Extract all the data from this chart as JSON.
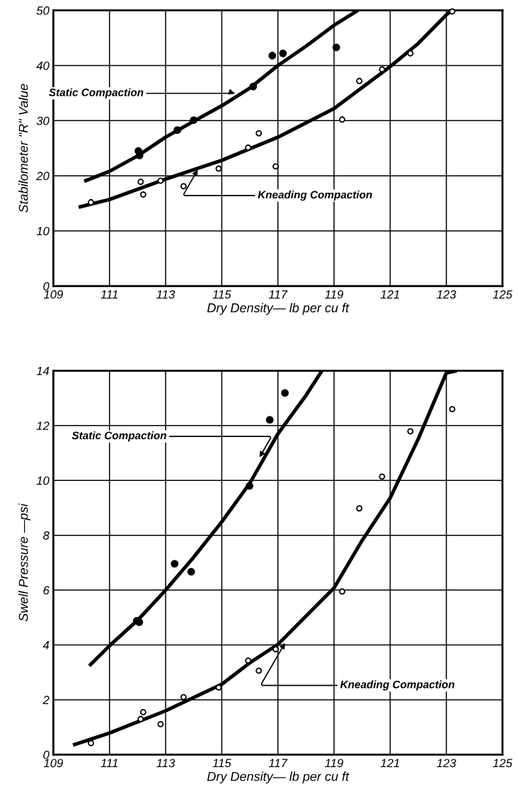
{
  "chart_data": [
    {
      "type": "scatter",
      "xlabel": "Dry Density— lb per cu ft",
      "ylabel": "Stabilometer \"R\" Value",
      "xlim": [
        109,
        125
      ],
      "xticks": [
        109,
        111,
        113,
        115,
        117,
        119,
        121,
        123,
        125
      ],
      "ylim": [
        0,
        50
      ],
      "yticks": [
        0,
        10,
        20,
        30,
        40,
        50
      ],
      "grid": true,
      "marker": "circle",
      "series": [
        {
          "color": "#000000",
          "x": [
            112.03,
            112.07,
            113.42,
            114.0,
            116.12,
            116.8,
            117.18,
            119.08
          ],
          "values": [
            24.5,
            23.7,
            28.3,
            30.1,
            36.2,
            41.8,
            42.2,
            43.3
          ]
        },
        {
          "color": "#000000",
          "x": [
            110.34,
            112.11,
            112.2,
            112.82,
            113.64,
            114.89,
            115.94,
            116.32,
            116.92,
            119.29,
            119.9,
            120.71,
            121.72,
            123.21
          ],
          "values": [
            15.2,
            18.9,
            16.6,
            19.1,
            18.1,
            21.3,
            25.1,
            27.7,
            21.7,
            30.2,
            37.2,
            39.3,
            42.2,
            49.8
          ]
        },
        {
          "type": "line",
          "color": "#000000",
          "marker": "none",
          "x": [
            110.1,
            111,
            112,
            113,
            114,
            115,
            116,
            117,
            118,
            119,
            119.85
          ],
          "values": [
            19.0,
            20.8,
            23.6,
            27.0,
            29.9,
            32.7,
            35.9,
            40.0,
            43.5,
            47.3,
            50
          ]
        },
        {
          "type": "line",
          "color": "#000000",
          "marker": "none",
          "x": [
            109.9,
            111,
            113,
            115,
            117,
            119,
            121,
            122,
            123,
            123.2
          ],
          "values": [
            14.3,
            15.7,
            19.4,
            22.8,
            27.0,
            32.2,
            39.8,
            44,
            49.2,
            50
          ]
        }
      ],
      "annotations": [
        {
          "text": "Static Compaction",
          "x": 115.49,
          "y": 34.6
        },
        {
          "text": "Kneading Compaction",
          "x": 114.18,
          "y": 21.4
        }
      ]
    },
    {
      "type": "scatter",
      "xlabel": "Dry Density— lb per cu ft",
      "ylabel": "Swell Pressure —psi",
      "xlim": [
        109,
        125
      ],
      "xticks": [
        109,
        111,
        113,
        115,
        117,
        119,
        121,
        123,
        125
      ],
      "ylim": [
        0,
        14
      ],
      "yticks": [
        0,
        2,
        4,
        6,
        8,
        10,
        12,
        14
      ],
      "grid": true,
      "marker": "circle",
      "series": [
        {
          "color": "#000000",
          "x": [
            111.97,
            112.06,
            113.32,
            113.91,
            115.99,
            116.71,
            117.25
          ],
          "values": [
            4.88,
            4.83,
            6.96,
            6.67,
            9.8,
            12.21,
            13.19
          ]
        },
        {
          "color": "#000000",
          "x": [
            110.34,
            112.11,
            112.2,
            112.82,
            113.64,
            114.89,
            115.94,
            116.32,
            116.92,
            119.29,
            119.9,
            120.71,
            121.72,
            123.21
          ],
          "values": [
            0.42,
            1.3,
            1.55,
            1.11,
            2.1,
            2.45,
            3.43,
            3.06,
            3.84,
            5.95,
            8.98,
            10.14,
            11.79,
            12.6
          ]
        },
        {
          "type": "line",
          "color": "#000000",
          "marker": "none",
          "x": [
            110.28,
            111,
            112,
            113,
            114,
            115,
            116,
            117,
            118,
            118.57
          ],
          "values": [
            3.24,
            3.97,
            4.9,
            6.0,
            7.2,
            8.49,
            9.9,
            11.7,
            13.1,
            14.0
          ]
        },
        {
          "type": "line",
          "color": "#000000",
          "marker": "none",
          "x": [
            109.7,
            111,
            113,
            115,
            116,
            117,
            119,
            120,
            121,
            122,
            123,
            123.38
          ],
          "values": [
            0.35,
            0.79,
            1.6,
            2.57,
            3.35,
            4.02,
            6.08,
            7.81,
            9.36,
            11.51,
            13.92,
            14.0
          ]
        }
      ],
      "annotations": [
        {
          "text": "Static Compaction",
          "x": 116.31,
          "y": 10.78
        },
        {
          "text": "Kneading Compaction",
          "x": 117.29,
          "y": 4.14
        }
      ]
    }
  ]
}
